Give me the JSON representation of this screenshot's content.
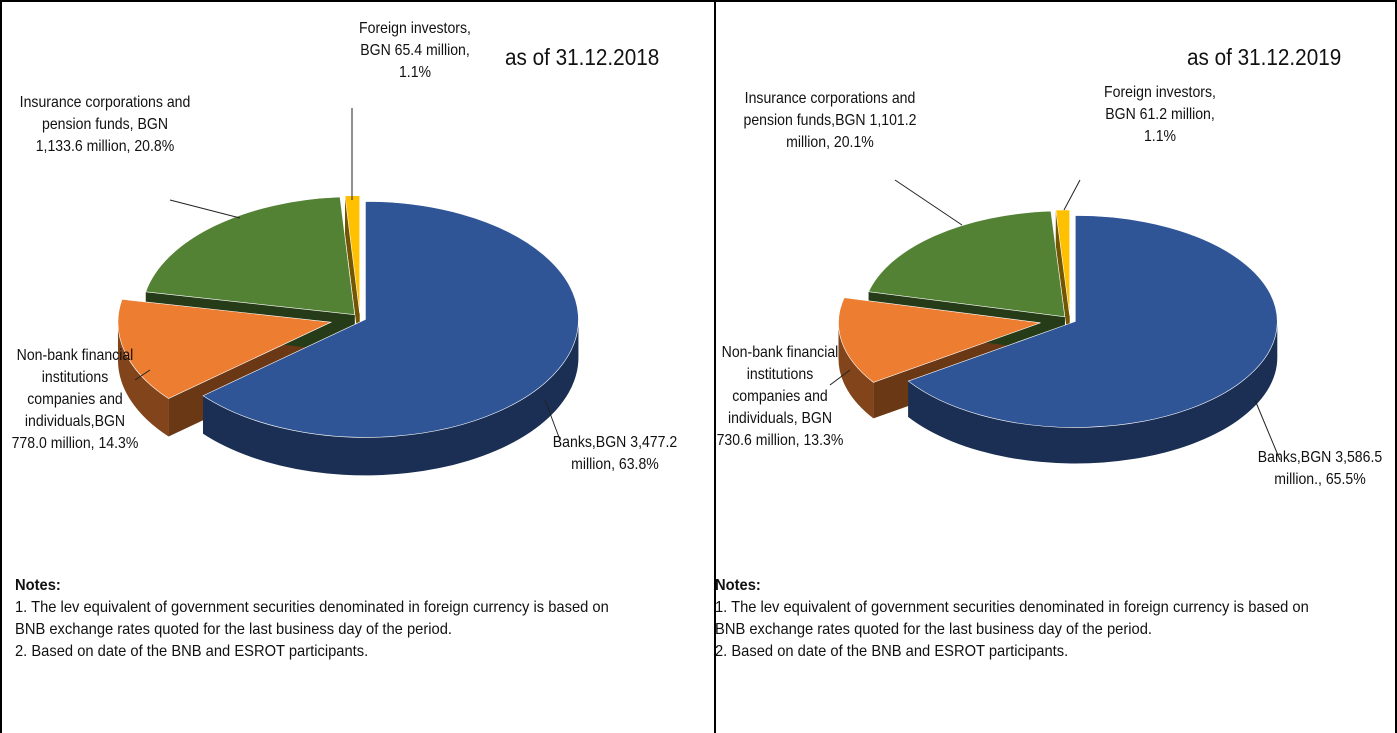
{
  "chart_data": [
    {
      "type": "pie",
      "title": "as of 31.12.2018",
      "categories": [
        "Banks",
        "Non-bank financial institutions companies and individuals",
        "Insurance corporations and pension funds",
        "Foreign investors"
      ],
      "labels": [
        "Banks,BGN 3,477.2 million, 63.8%",
        "Non-bank financial institutions companies and individuals,BGN 778.0 million, 14.3%",
        "Insurance corporations and pension funds, BGN 1,133.6 million, 20.8%",
        "Foreign investors, BGN 65.4 million, 1.1%"
      ],
      "values": [
        63.8,
        14.3,
        20.8,
        1.1
      ],
      "colors": [
        "#2f5597",
        "#ed7d31",
        "#548235",
        "#ffc000"
      ],
      "notes": {
        "title": "Notes:",
        "items": [
          "1. The lev equivalent of government securities denominated in foreign currency is based on BNB exchange rates quoted for the last business day of the period.",
          "2. Based on date of the BNB and ESROT participants."
        ]
      }
    },
    {
      "type": "pie",
      "title": "as of 31.12.2019",
      "categories": [
        "Banks",
        "Non-bank financial institutions companies and individuals",
        "Insurance corporations and pension funds",
        "Foreign investors"
      ],
      "labels": [
        "Banks,BGN 3,586.5 million., 65.5%",
        "Non-bank financial institutions companies and individuals, BGN 730.6 million, 13.3%",
        "Insurance corporations and pension funds,BGN 1,101.2 million, 20.1%",
        "Foreign investors, BGN 61.2 million, 1.1%"
      ],
      "values": [
        65.5,
        13.3,
        20.1,
        1.1
      ],
      "colors": [
        "#2f5597",
        "#ed7d31",
        "#548235",
        "#ffc000"
      ],
      "notes": {
        "title": "Notes:",
        "items": [
          "1. The lev equivalent of government securities denominated in foreign currency is based on BNB exchange rates quoted for the last business day of the period.",
          "2. Based on date of the BNB and ESROT participants."
        ]
      }
    }
  ]
}
